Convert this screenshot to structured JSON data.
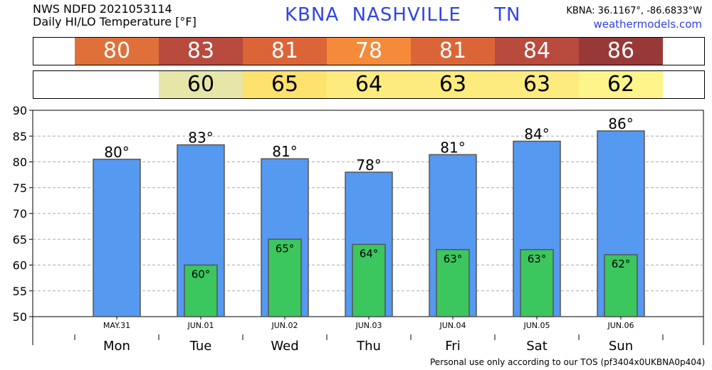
{
  "header": {
    "line1": "NWS NDFD 2021053114",
    "line2": "Daily HI/LO Temperature [°F]",
    "station_title": "KBNA  NASHVILLE     TN",
    "coords": "KBNA: 36.1167°, -86.6833°W",
    "site": "weathermodels.com"
  },
  "hi_row": [
    {
      "text": "80",
      "color": "#e0703a"
    },
    {
      "text": "83",
      "color": "#b84a3e"
    },
    {
      "text": "81",
      "color": "#dc6538"
    },
    {
      "text": "78",
      "color": "#f58a3a"
    },
    {
      "text": "81",
      "color": "#dc6538"
    },
    {
      "text": "84",
      "color": "#b84a3e"
    },
    {
      "text": "86",
      "color": "#993838"
    }
  ],
  "lo_row": [
    {
      "text": "",
      "color": "#ffffff"
    },
    {
      "text": "60",
      "color": "#e6e6a8"
    },
    {
      "text": "65",
      "color": "#fde26e"
    },
    {
      "text": "64",
      "color": "#fdeb7e"
    },
    {
      "text": "63",
      "color": "#fdeb7e"
    },
    {
      "text": "63",
      "color": "#fdeb7e"
    },
    {
      "text": "62",
      "color": "#fdf58a"
    }
  ],
  "chart_data": {
    "type": "bar",
    "categories": [
      "MAY.31",
      "JUN.01",
      "JUN.02",
      "JUN.03",
      "JUN.04",
      "JUN.05",
      "JUN.06"
    ],
    "days": [
      "Mon",
      "Tue",
      "Wed",
      "Thu",
      "Fri",
      "Sat",
      "Sun"
    ],
    "series": [
      {
        "values": [
          80.5,
          83.3,
          80.6,
          78.0,
          81.4,
          84.0,
          86.0
        ],
        "labels": [
          "80°",
          "83°",
          "81°",
          "78°",
          "81°",
          "84°",
          "86°"
        ],
        "color": "#5599f0"
      },
      {
        "values": [
          null,
          60.0,
          65.0,
          64.0,
          63.0,
          63.0,
          62.0
        ],
        "labels": [
          "",
          "60°",
          "65°",
          "64°",
          "63°",
          "63°",
          "62°"
        ],
        "color": "#3cc65e"
      }
    ],
    "yticks": [
      "50",
      "55",
      "60",
      "65",
      "70",
      "75",
      "80",
      "85",
      "90"
    ],
    "ylim": [
      50,
      90
    ],
    "grid": true
  },
  "footer": "Personal use only according to our TOS (pf3404x0UKBNA0p404)"
}
